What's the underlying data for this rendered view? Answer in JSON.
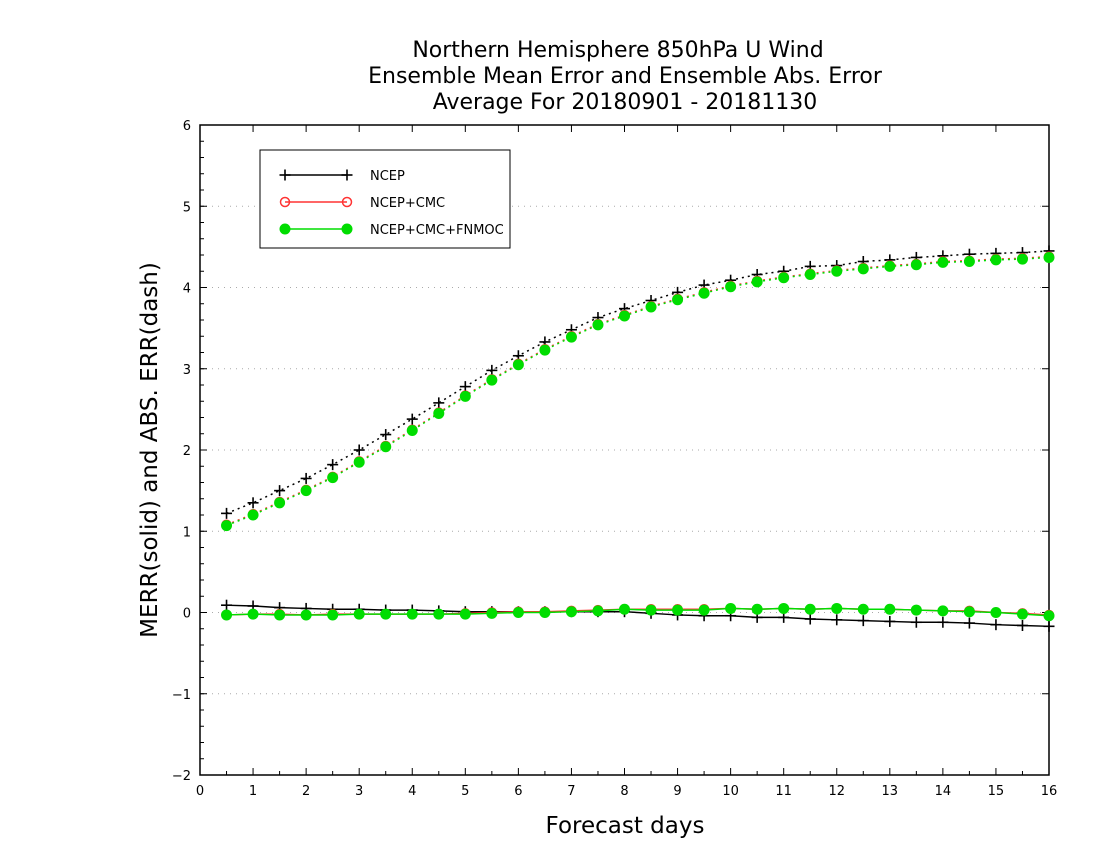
{
  "chart_data": {
    "type": "line",
    "title": [
      "Northern Hemisphere 850hPa U Wind",
      "Ensemble Mean Error and Ensemble Abs. Error",
      "Average For 20180901 - 20181130"
    ],
    "xlabel": "Forecast days",
    "ylabel": "MERR(solid) and ABS. ERR(dash)",
    "xlim": [
      0,
      16
    ],
    "ylim": [
      -2,
      6
    ],
    "x_ticks": [
      "0",
      "1",
      "2",
      "3",
      "4",
      "5",
      "6",
      "7",
      "8",
      "9",
      "10",
      "11",
      "12",
      "13",
      "14",
      "15",
      "16"
    ],
    "y_ticks": [
      "−2",
      "−1",
      "0",
      "1",
      "2",
      "3",
      "4",
      "5",
      "6"
    ],
    "grid": "horizontal dotted",
    "legend_position": "top-left",
    "x": [
      0.5,
      1,
      1.5,
      2,
      2.5,
      3,
      3.5,
      4,
      4.5,
      5,
      5.5,
      6,
      6.5,
      7,
      7.5,
      8,
      8.5,
      9,
      9.5,
      10,
      10.5,
      11,
      11.5,
      12,
      12.5,
      13,
      13.5,
      14,
      14.5,
      15,
      15.5,
      16
    ],
    "series": [
      {
        "name": "NCEP",
        "color": "#000000",
        "marker": "plus",
        "merr": [
          0.09,
          0.08,
          0.06,
          0.05,
          0.04,
          0.04,
          0.03,
          0.03,
          0.02,
          0.01,
          0.01,
          0.01,
          0.01,
          0.01,
          0.01,
          0.01,
          -0.01,
          -0.03,
          -0.04,
          -0.04,
          -0.06,
          -0.06,
          -0.08,
          -0.09,
          -0.1,
          -0.11,
          -0.12,
          -0.12,
          -0.13,
          -0.15,
          -0.16,
          -0.17
        ],
        "abs_err": [
          1.22,
          1.35,
          1.5,
          1.65,
          1.82,
          2.0,
          2.19,
          2.38,
          2.58,
          2.78,
          2.98,
          3.16,
          3.33,
          3.48,
          3.63,
          3.74,
          3.84,
          3.94,
          4.03,
          4.09,
          4.16,
          4.2,
          4.26,
          4.27,
          4.32,
          4.34,
          4.37,
          4.39,
          4.41,
          4.42,
          4.43,
          4.45
        ]
      },
      {
        "name": "NCEP+CMC",
        "color": "#ff3333",
        "marker": "open-circle",
        "merr": [
          -0.03,
          -0.02,
          -0.02,
          -0.03,
          -0.02,
          -0.02,
          -0.02,
          -0.02,
          -0.02,
          -0.01,
          0.0,
          0.01,
          0.01,
          0.02,
          0.03,
          0.04,
          0.04,
          0.04,
          0.04,
          0.05,
          0.04,
          0.05,
          0.04,
          0.05,
          0.04,
          0.04,
          0.03,
          0.02,
          0.02,
          0.0,
          -0.01,
          -0.03
        ],
        "abs_err": [
          1.08,
          1.21,
          1.36,
          1.51,
          1.67,
          1.86,
          2.05,
          2.25,
          2.46,
          2.67,
          2.87,
          3.06,
          3.24,
          3.4,
          3.55,
          3.66,
          3.77,
          3.86,
          3.94,
          4.02,
          4.08,
          4.13,
          4.17,
          4.21,
          4.24,
          4.27,
          4.29,
          4.32,
          4.33,
          4.35,
          4.36,
          4.38
        ]
      },
      {
        "name": "NCEP+CMC+FNMOC",
        "color": "#00dd00",
        "marker": "filled-circle",
        "merr": [
          -0.03,
          -0.02,
          -0.03,
          -0.03,
          -0.03,
          -0.02,
          -0.02,
          -0.02,
          -0.02,
          -0.02,
          -0.01,
          0.0,
          0.0,
          0.01,
          0.02,
          0.04,
          0.03,
          0.03,
          0.03,
          0.05,
          0.04,
          0.05,
          0.04,
          0.05,
          0.04,
          0.04,
          0.03,
          0.02,
          0.01,
          0.0,
          -0.02,
          -0.04
        ],
        "abs_err": [
          1.07,
          1.2,
          1.35,
          1.5,
          1.66,
          1.85,
          2.04,
          2.24,
          2.45,
          2.66,
          2.86,
          3.05,
          3.23,
          3.39,
          3.54,
          3.65,
          3.76,
          3.85,
          3.93,
          4.01,
          4.07,
          4.12,
          4.16,
          4.2,
          4.23,
          4.26,
          4.28,
          4.31,
          4.32,
          4.34,
          4.35,
          4.37
        ]
      }
    ]
  }
}
